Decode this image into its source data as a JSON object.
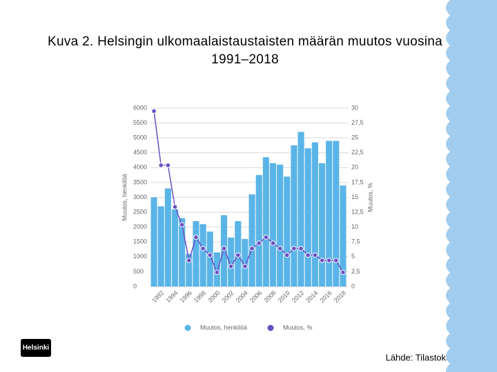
{
  "chart_data": {
    "type": "bar",
    "title": "Kuva 2. Helsingin ulkomaalaistaustaisten määrän muutos vuosina 1991–2018",
    "ylabel": "Muutos, henkilöä",
    "y2label": "Muutos, %",
    "categories": [
      null,
      "1992",
      null,
      "1994",
      null,
      "1996",
      null,
      "1998",
      null,
      "2000",
      null,
      "2002",
      null,
      "2004",
      null,
      "2006",
      null,
      "2008",
      null,
      "2010",
      null,
      "2012",
      null,
      "2014",
      null,
      "2016",
      null,
      "2018"
    ],
    "series": [
      {
        "name": "Muutos, henkilöä",
        "type": "bar",
        "color": "#5ab4e8",
        "values": [
          3000,
          2700,
          3300,
          2600,
          2300,
          1100,
          2200,
          2100,
          1850,
          1150,
          2400,
          1650,
          2200,
          1600,
          3100,
          3750,
          4350,
          4150,
          4100,
          3700,
          4750,
          5200,
          4650,
          4850,
          4150,
          4900,
          4900,
          3400
        ]
      },
      {
        "name": "Muutos, %",
        "type": "line",
        "axis": "y2",
        "color": "#6a4fc4",
        "values": [
          29.5,
          20.4,
          20.4,
          13.4,
          10.4,
          4.4,
          8.3,
          6.4,
          5.3,
          2.4,
          6.4,
          3.4,
          5.3,
          3.4,
          6.4,
          7.3,
          8.3,
          7.3,
          6.4,
          5.3,
          6.4,
          6.4,
          5.3,
          5.3,
          4.4,
          4.4,
          4.4,
          2.4
        ]
      }
    ],
    "ylim": [
      0,
      6000
    ],
    "yticks": [
      0,
      500,
      1000,
      1500,
      2000,
      2500,
      3000,
      3500,
      4000,
      4500,
      5000,
      5500,
      6000
    ],
    "y2lim": [
      0,
      30
    ],
    "y2ticks": [
      0,
      {
        "value": 2.5,
        "label": "2,5"
      },
      5,
      {
        "value": 7.5,
        "label": "7,5"
      },
      10,
      {
        "value": 12.5,
        "label": "12,5"
      },
      15,
      {
        "value": 17.5,
        "label": "17,5"
      },
      20,
      {
        "value": 22.5,
        "label": "22,5"
      },
      25,
      {
        "value": 27.5,
        "label": "27,5"
      },
      30
    ],
    "grid": true,
    "legend": "bottom"
  },
  "logo": "Helsinki",
  "source": "Lähde: Tilastokeskus"
}
